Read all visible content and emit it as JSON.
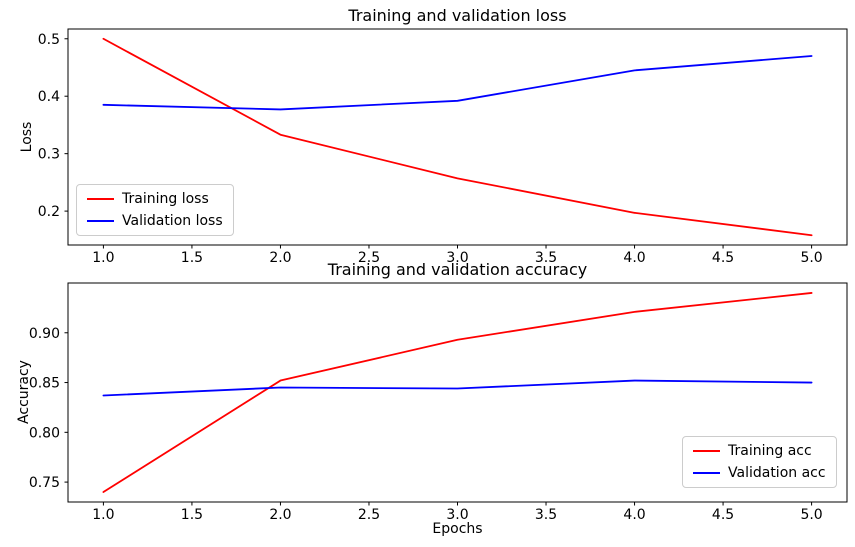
{
  "figure": {
    "background": "#ffffff"
  },
  "chart_data": [
    {
      "type": "line",
      "title": "Training and validation loss",
      "xlabel": "",
      "ylabel": "Loss",
      "x": [
        1,
        2,
        3,
        4,
        5
      ],
      "series": [
        {
          "name": "Training loss",
          "color": "#ff0000",
          "values": [
            0.5,
            0.333,
            0.257,
            0.197,
            0.158
          ]
        },
        {
          "name": "Validation loss",
          "color": "#0000ff",
          "values": [
            0.385,
            0.377,
            0.392,
            0.445,
            0.47
          ]
        }
      ],
      "xlim": [
        0.8,
        5.2
      ],
      "ylim": [
        0.141,
        0.517
      ],
      "xtick_values": [
        1.0,
        1.5,
        2.0,
        2.5,
        3.0,
        3.5,
        4.0,
        4.5,
        5.0
      ],
      "xtick_labels": [
        "1.0",
        "1.5",
        "2.0",
        "2.5",
        "3.0",
        "3.5",
        "4.0",
        "4.5",
        "5.0"
      ],
      "ytick_values": [
        0.2,
        0.3,
        0.4,
        0.5
      ],
      "ytick_labels": [
        "0.2",
        "0.3",
        "0.4",
        "0.5"
      ],
      "grid": false,
      "legend_position": "center left"
    },
    {
      "type": "line",
      "title": "Training and validation accuracy",
      "xlabel": "Epochs",
      "ylabel": "Accuracy",
      "x": [
        1,
        2,
        3,
        4,
        5
      ],
      "series": [
        {
          "name": "Training acc",
          "color": "#ff0000",
          "values": [
            0.74,
            0.852,
            0.893,
            0.921,
            0.94
          ]
        },
        {
          "name": "Validation acc",
          "color": "#0000ff",
          "values": [
            0.837,
            0.845,
            0.844,
            0.852,
            0.85
          ]
        }
      ],
      "xlim": [
        0.8,
        5.2
      ],
      "ylim": [
        0.73,
        0.95
      ],
      "xtick_values": [
        1.0,
        1.5,
        2.0,
        2.5,
        3.0,
        3.5,
        4.0,
        4.5,
        5.0
      ],
      "xtick_labels": [
        "1.0",
        "1.5",
        "2.0",
        "2.5",
        "3.0",
        "3.5",
        "4.0",
        "4.5",
        "5.0"
      ],
      "ytick_values": [
        0.75,
        0.8,
        0.85,
        0.9
      ],
      "ytick_labels": [
        "0.75",
        "0.80",
        "0.85",
        "0.90"
      ],
      "grid": false,
      "legend_position": "lower right"
    }
  ]
}
